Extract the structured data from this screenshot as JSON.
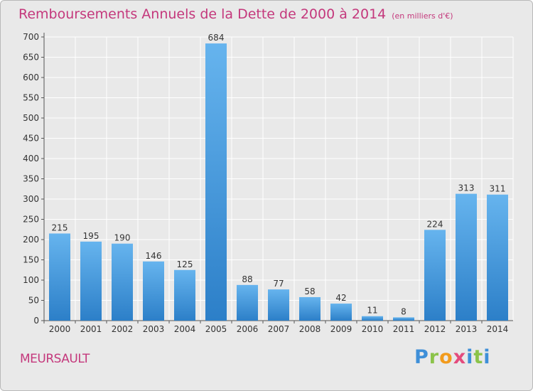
{
  "header": {
    "title": "Remboursements Annuels de la Dette de 2000 à 2014",
    "unit": "(en milliers d'€)"
  },
  "footer": {
    "city": "MEURSAULT",
    "logo": "Proxiti"
  },
  "colors": {
    "title": "#c4387c",
    "bar_light": "#66b4ee",
    "bar_dark": "#2c7fc8",
    "background": "#e9e9e9",
    "grid": "#ffffff"
  },
  "chart_data": {
    "type": "bar",
    "title": "Remboursements Annuels de la Dette de 2000 à 2014",
    "subtitle": "(en milliers d'€)",
    "xlabel": "",
    "ylabel": "",
    "categories": [
      "2000",
      "2001",
      "2002",
      "2003",
      "2004",
      "2005",
      "2006",
      "2007",
      "2008",
      "2009",
      "2010",
      "2011",
      "2012",
      "2013",
      "2014"
    ],
    "values": [
      215,
      195,
      190,
      146,
      125,
      684,
      88,
      77,
      58,
      42,
      11,
      8,
      224,
      313,
      311
    ],
    "ylim": [
      0,
      700
    ],
    "yticks": [
      0,
      50,
      100,
      150,
      200,
      250,
      300,
      350,
      400,
      450,
      500,
      550,
      600,
      650,
      700
    ],
    "grid": true,
    "data_labels": true
  }
}
